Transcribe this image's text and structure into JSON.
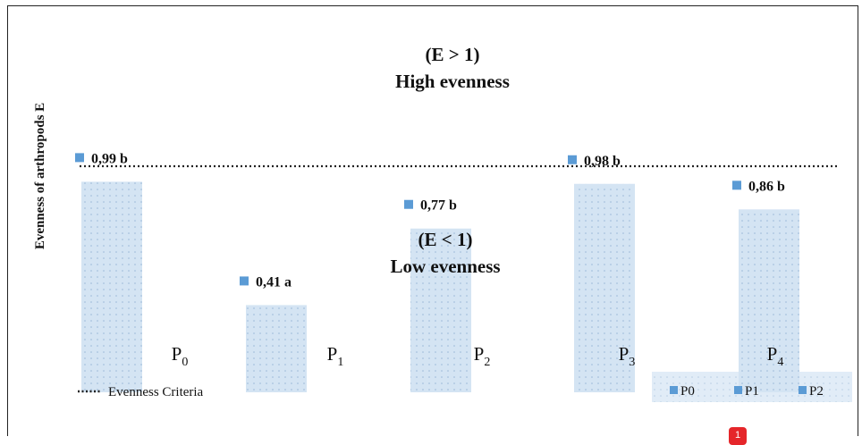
{
  "chart_data": {
    "type": "bar",
    "ylabel": "Evenness  of arthropods  E",
    "categories": [
      {
        "base": "P",
        "sub": "0"
      },
      {
        "base": "P",
        "sub": "1"
      },
      {
        "base": "P",
        "sub": "2"
      },
      {
        "base": "P",
        "sub": "3"
      },
      {
        "base": "P",
        "sub": "4"
      }
    ],
    "values": [
      0.99,
      0.41,
      0.77,
      0.98,
      0.86
    ],
    "value_labels": [
      "0,99 b",
      "0,41 a",
      "0,77 b",
      "0,98 b",
      "0,86 b"
    ],
    "annotations": {
      "high_line1": "(E > 1)",
      "high_line2": "High evenness",
      "low_line1": "(E < 1)",
      "low_line2": "Low evenness"
    },
    "reference_line": {
      "value": 1,
      "style": "dotted",
      "legend_label": "Evenness Criteria"
    },
    "legend": [
      "P0",
      "P1",
      "P2"
    ],
    "bar_color": "#c9dcef",
    "marker_color": "#5b9bd5"
  },
  "badge": {
    "text": "1",
    "color": "#e5262a"
  }
}
